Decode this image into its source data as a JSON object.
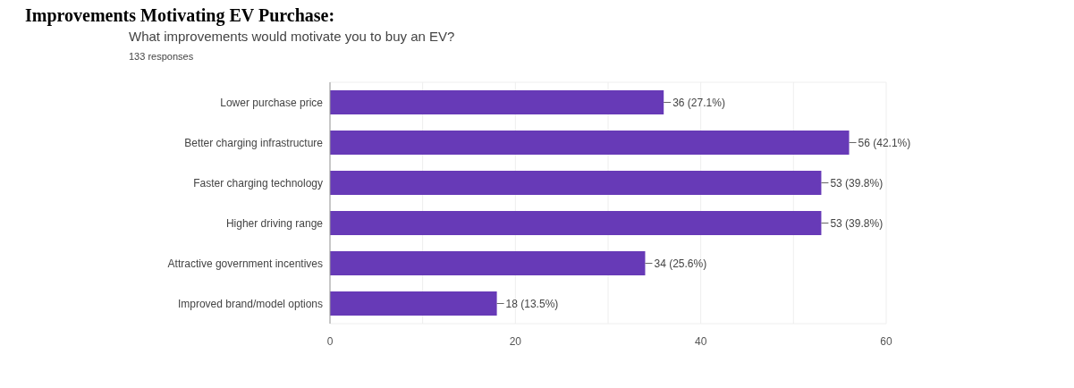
{
  "chart_data": {
    "type": "bar",
    "orientation": "horizontal",
    "title": "What improvements would motivate you to buy an EV?",
    "subtitle": "133 responses",
    "annotations": [
      "Improvements Motivating EV Purchase:"
    ],
    "categories": [
      "Lower purchase price",
      "Better charging infrastructure",
      "Faster charging technology",
      "Higher driving range",
      "Attractive government incentives",
      "Improved brand/model options"
    ],
    "values": [
      36,
      56,
      53,
      53,
      34,
      18
    ],
    "value_labels": [
      "36 (27.1%)",
      "56 (42.1%)",
      "53 (39.8%)",
      "53 (39.8%)",
      "34 (25.6%)",
      "18 (13.5%)"
    ],
    "color": "#673ab7",
    "xlim": [
      0,
      60
    ],
    "xticks": [
      0,
      {
        "value": 10,
        "label": null
      },
      20,
      {
        "value": 30,
        "label": null
      },
      40,
      {
        "value": 50,
        "label": null
      },
      60
    ],
    "grid": "x"
  }
}
